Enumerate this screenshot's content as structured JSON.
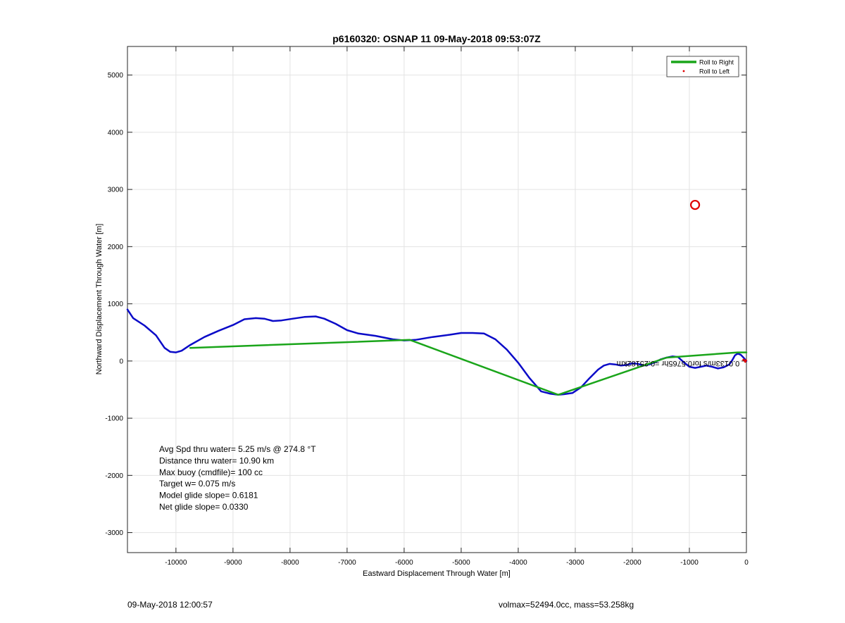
{
  "footer": {
    "left": "09-May-2018 12:00:57",
    "right": "volmax=52494.0cc, mass=53.258kg"
  },
  "chart_data": {
    "type": "line",
    "title": "p6160320: OSNAP 11 09-May-2018 09:53:07Z",
    "xlabel": "Eastward Displacement Through Water [m]",
    "ylabel": "Northward Displacement Through Water [m]",
    "xlim": [
      -10850,
      0
    ],
    "ylim": [
      -3350,
      5500
    ],
    "grid": true,
    "xticks": [
      -10000,
      -9000,
      -8000,
      -7000,
      -6000,
      -5000,
      -4000,
      -3000,
      -2000,
      -1000,
      0
    ],
    "yticks": [
      -3000,
      -2000,
      -1000,
      0,
      1000,
      2000,
      3000,
      4000,
      5000
    ],
    "legend": {
      "placement": "top-right",
      "entries": [
        {
          "label": "Roll to Right",
          "color": "#1aa51a",
          "style": "line"
        },
        {
          "label": "Roll to Left",
          "color": "#e00000",
          "style": "point"
        }
      ]
    },
    "series": [
      {
        "color": "#0b0bc8",
        "x": [
          -10850,
          -10750,
          -10550,
          -10350,
          -10200,
          -10100,
          -10000,
          -9900,
          -9750,
          -9500,
          -9250,
          -9000,
          -8800,
          -8600,
          -8450,
          -8300,
          -8150,
          -7950,
          -7750,
          -7550,
          -7400,
          -7200,
          -7000,
          -6800,
          -6500,
          -6200,
          -6000,
          -5800,
          -5500,
          -5200,
          -5000,
          -4800,
          -4600,
          -4400,
          -4200,
          -4000,
          -3800,
          -3600,
          -3450,
          -3300,
          -3200,
          -3050,
          -2900,
          -2750,
          -2600,
          -2500,
          -2400,
          -2300,
          -2200,
          -2100,
          -2000,
          -1900,
          -1800,
          -1700,
          -1600,
          -1500,
          -1400,
          -1300,
          -1200,
          -1100,
          -1000,
          -900,
          -800,
          -700,
          -600,
          -500,
          -400,
          -300,
          -250,
          -200,
          -150,
          -100,
          -50,
          0
        ],
        "y": [
          900,
          750,
          620,
          450,
          230,
          160,
          150,
          180,
          280,
          420,
          530,
          630,
          730,
          750,
          740,
          700,
          710,
          740,
          770,
          780,
          740,
          650,
          540,
          480,
          440,
          380,
          360,
          370,
          420,
          460,
          490,
          490,
          480,
          380,
          200,
          -30,
          -300,
          -530,
          -570,
          -590,
          -580,
          -560,
          -460,
          -300,
          -150,
          -80,
          -50,
          -60,
          -80,
          -70,
          -40,
          -50,
          -80,
          -60,
          -20,
          30,
          60,
          80,
          70,
          -20,
          -100,
          -120,
          -100,
          -80,
          -100,
          -130,
          -110,
          -60,
          10,
          100,
          130,
          110,
          60,
          0
        ]
      },
      {
        "name": "Roll to Right",
        "color": "#1aa51a",
        "x": [
          -9750,
          -5900,
          -3300,
          -1400,
          -150,
          0
        ],
        "y": [
          230,
          370,
          -590,
          60,
          150,
          150
        ]
      }
    ],
    "markers": {
      "surface_circle": {
        "x": -900,
        "y": 2730,
        "color": "#e00000"
      },
      "roll_left_points": {
        "x": [
          -50,
          -20,
          -10
        ],
        "y": [
          20,
          -10,
          10
        ],
        "color": "#e00000"
      }
    },
    "current_annotation": {
      "text": "0.0133m/s for0.5765hr =0.25182km",
      "x": -120,
      "y": 0,
      "rotation_deg": 180
    },
    "stats_box": [
      "Avg Spd thru water=  5.25 m/s @ 274.8 °T",
      "Distance thru water= 10.90 km",
      "Max buoy (cmdfile)= 100 cc",
      "Target w= 0.075 m/s",
      "Model glide slope= 0.6181",
      "Net glide slope= 0.0330"
    ]
  }
}
